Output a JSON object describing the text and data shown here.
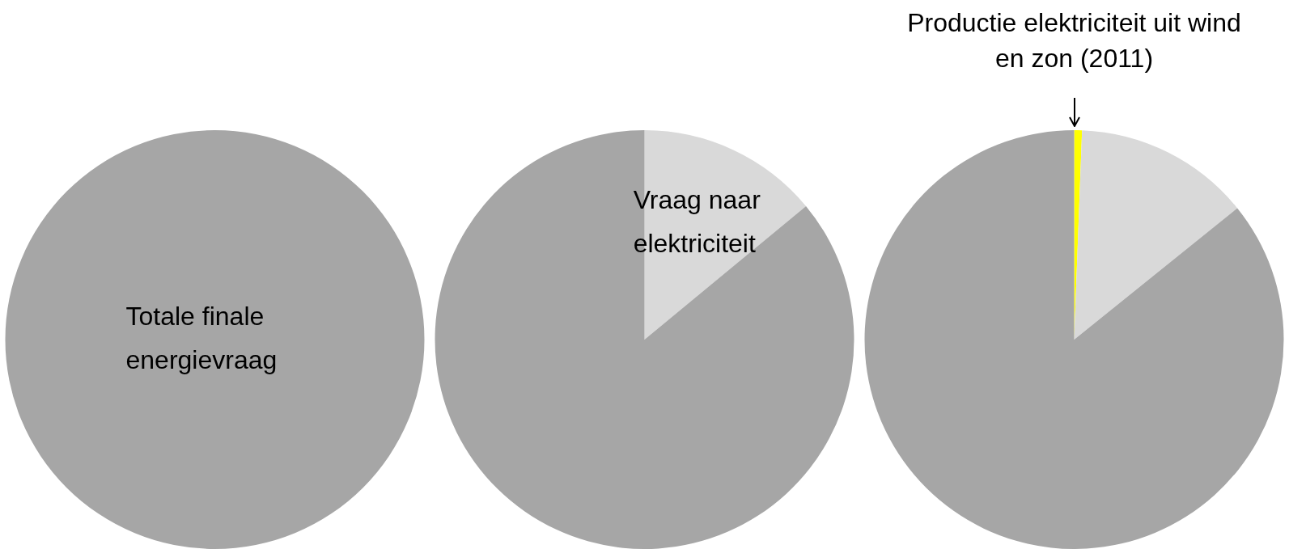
{
  "chart_data": [
    {
      "type": "pie",
      "categories": [
        "Totale finale energievraag"
      ],
      "values": [
        100
      ],
      "colors": [
        "#a6a6a6"
      ]
    },
    {
      "type": "pie",
      "categories": [
        "Vraag naar elektriciteit",
        null
      ],
      "values": [
        14,
        86
      ],
      "colors": [
        "#d9d9d9",
        "#a6a6a6"
      ]
    },
    {
      "type": "pie",
      "categories": [
        "Productie elektriciteit uit wind en zon (2011)",
        null,
        null
      ],
      "values": [
        0.6,
        13.6,
        85.8
      ],
      "colors": [
        "#ffff00",
        "#d9d9d9",
        "#a6a6a6"
      ]
    }
  ]
}
